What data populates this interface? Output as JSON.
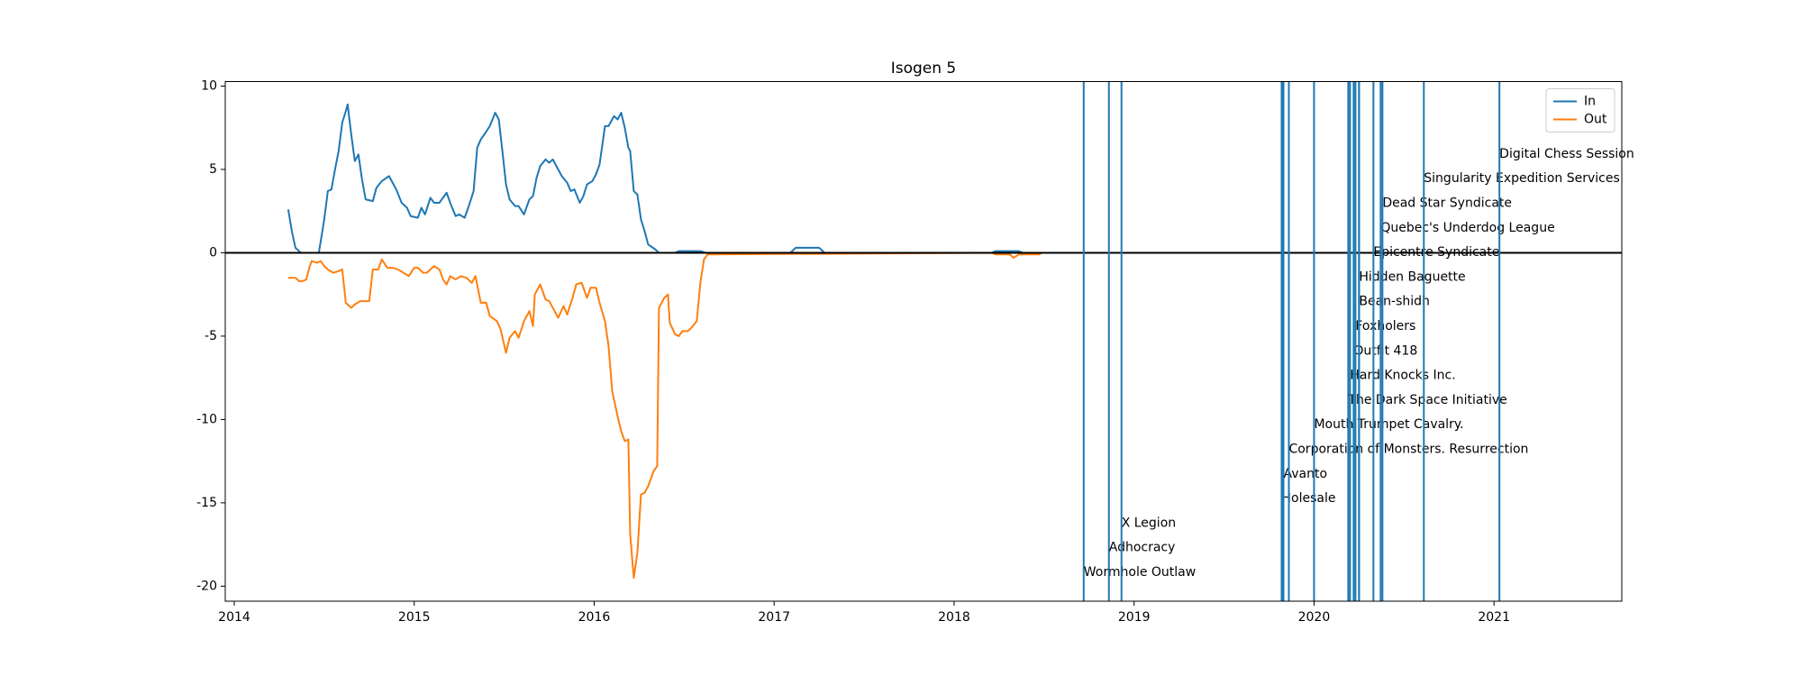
{
  "chart_data": {
    "type": "line",
    "title": "Isogen 5",
    "xlim": [
      2013.95,
      2021.71
    ],
    "ylim": [
      -20.9,
      10.27
    ],
    "xticks": [
      2014,
      2015,
      2016,
      2017,
      2018,
      2019,
      2020,
      2021
    ],
    "yticks": [
      10,
      5,
      0,
      -5,
      -10,
      -15,
      -20
    ],
    "legend": "upper right",
    "hline": 0,
    "hline_color": "#000000",
    "event_color": "#1f77b4",
    "series": [
      {
        "name": "In",
        "color": "#1f77b4",
        "x": [
          2014.3,
          2014.32,
          2014.34,
          2014.37,
          2014.47,
          2014.5,
          2014.52,
          2014.54,
          2014.56,
          2014.58,
          2014.6,
          2014.62,
          2014.63,
          2014.65,
          2014.67,
          2014.69,
          2014.71,
          2014.73,
          2014.77,
          2014.79,
          2014.82,
          2014.86,
          2014.88,
          2014.9,
          2014.93,
          2014.96,
          2014.98,
          2015.02,
          2015.04,
          2015.06,
          2015.09,
          2015.11,
          2015.14,
          2015.18,
          2015.2,
          2015.23,
          2015.25,
          2015.28,
          2015.3,
          2015.33,
          2015.35,
          2015.37,
          2015.39,
          2015.42,
          2015.45,
          2015.47,
          2015.49,
          2015.51,
          2015.53,
          2015.56,
          2015.58,
          2015.61,
          2015.64,
          2015.66,
          2015.68,
          2015.7,
          2015.73,
          2015.75,
          2015.77,
          2015.8,
          2015.82,
          2015.85,
          2015.87,
          2015.89,
          2015.92,
          2015.94,
          2015.96,
          2015.99,
          2016.01,
          2016.03,
          2016.06,
          2016.08,
          2016.11,
          2016.13,
          2016.15,
          2016.17,
          2016.19,
          2016.2,
          2016.22,
          2016.24,
          2016.26,
          2016.28,
          2016.3,
          2016.34,
          2016.36,
          2016.45,
          2016.47,
          2016.59,
          2016.62,
          2017.09,
          2017.12,
          2017.25,
          2017.28,
          2018.21,
          2018.23,
          2018.36,
          2018.38,
          2021.35
        ],
        "values": [
          2.6,
          1.3,
          0.3,
          0,
          0,
          2.0,
          3.7,
          3.8,
          5.0,
          6.1,
          7.8,
          8.5,
          8.9,
          7.1,
          5.5,
          5.9,
          4.4,
          3.2,
          3.1,
          3.9,
          4.3,
          4.6,
          4.2,
          3.8,
          3.0,
          2.7,
          2.2,
          2.1,
          2.7,
          2.3,
          3.3,
          3.0,
          3.0,
          3.6,
          3.0,
          2.2,
          2.3,
          2.1,
          2.7,
          3.7,
          6.3,
          6.8,
          7.1,
          7.6,
          8.4,
          8.0,
          6.1,
          4.1,
          3.2,
          2.8,
          2.8,
          2.3,
          3.2,
          3.4,
          4.5,
          5.2,
          5.6,
          5.4,
          5.6,
          5.0,
          4.6,
          4.2,
          3.7,
          3.8,
          3.0,
          3.4,
          4.1,
          4.3,
          4.7,
          5.3,
          7.6,
          7.6,
          8.2,
          8.0,
          8.4,
          7.5,
          6.3,
          6.1,
          3.7,
          3.5,
          2.0,
          1.3,
          0.5,
          0.2,
          0,
          0,
          0.1,
          0.1,
          0,
          0,
          0.3,
          0.3,
          0,
          0,
          0.1,
          0.1,
          0,
          0
        ]
      },
      {
        "name": "Out",
        "color": "#ff7f0e",
        "x": [
          2014.3,
          2014.32,
          2014.34,
          2014.36,
          2014.38,
          2014.4,
          2014.42,
          2014.43,
          2014.46,
          2014.48,
          2014.5,
          2014.52,
          2014.55,
          2014.58,
          2014.6,
          2014.62,
          2014.65,
          2014.67,
          2014.7,
          2014.75,
          2014.77,
          2014.8,
          2014.82,
          2014.85,
          2014.88,
          2014.91,
          2014.94,
          2014.97,
          2015.0,
          2015.02,
          2015.05,
          2015.07,
          2015.11,
          2015.14,
          2015.16,
          2015.18,
          2015.2,
          2015.23,
          2015.26,
          2015.29,
          2015.32,
          2015.34,
          2015.37,
          2015.4,
          2015.42,
          2015.46,
          2015.48,
          2015.51,
          2015.53,
          2015.56,
          2015.58,
          2015.61,
          2015.64,
          2015.66,
          2015.67,
          2015.7,
          2015.73,
          2015.75,
          2015.78,
          2015.8,
          2015.83,
          2015.85,
          2015.88,
          2015.9,
          2015.93,
          2015.96,
          2015.98,
          2016.01,
          2016.03,
          2016.06,
          2016.08,
          2016.1,
          2016.13,
          2016.15,
          2016.17,
          2016.19,
          2016.2,
          2016.22,
          2016.24,
          2016.26,
          2016.28,
          2016.3,
          2016.33,
          2016.35,
          2016.36,
          2016.39,
          2016.41,
          2016.42,
          2016.45,
          2016.47,
          2016.49,
          2016.52,
          2016.54,
          2016.57,
          2016.59,
          2016.61,
          2016.63,
          2018.21,
          2018.23,
          2018.31,
          2018.33,
          2018.36,
          2018.47,
          2018.49,
          2021.35
        ],
        "values": [
          -1.5,
          -1.5,
          -1.5,
          -1.7,
          -1.7,
          -1.6,
          -0.8,
          -0.5,
          -0.6,
          -0.5,
          -0.8,
          -1.0,
          -1.2,
          -1.1,
          -1.0,
          -3.0,
          -3.3,
          -3.1,
          -2.9,
          -2.9,
          -1.0,
          -1.0,
          -0.4,
          -0.9,
          -0.9,
          -1.0,
          -1.2,
          -1.4,
          -0.9,
          -0.9,
          -1.2,
          -1.2,
          -0.8,
          -1.0,
          -1.6,
          -1.9,
          -1.4,
          -1.6,
          -1.4,
          -1.5,
          -1.8,
          -1.4,
          -3.0,
          -3.0,
          -3.8,
          -4.1,
          -4.6,
          -6.0,
          -5.1,
          -4.7,
          -5.1,
          -4.1,
          -3.5,
          -4.4,
          -2.5,
          -1.9,
          -2.8,
          -2.9,
          -3.5,
          -3.9,
          -3.2,
          -3.7,
          -2.7,
          -1.9,
          -1.8,
          -2.7,
          -2.1,
          -2.1,
          -3.0,
          -4.1,
          -5.6,
          -8.3,
          -9.8,
          -10.7,
          -11.3,
          -11.2,
          -16.9,
          -19.5,
          -18,
          -14.5,
          -14.4,
          -14.0,
          -13.1,
          -12.8,
          -3.3,
          -2.7,
          -2.5,
          -4.2,
          -4.9,
          -5.0,
          -4.7,
          -4.7,
          -4.5,
          -4.1,
          -1.8,
          -0.4,
          -0.1,
          0,
          -0.1,
          -0.1,
          -0.3,
          -0.1,
          -0.1,
          0,
          0
        ]
      }
    ],
    "events": [
      {
        "x": 2018.72,
        "label": "Wormhole Outlaw"
      },
      {
        "x": 2018.86,
        "label": "Adhocracy"
      },
      {
        "x": 2018.93,
        "label": "X Legion"
      },
      {
        "x": 2019.82,
        "label": "Holesale"
      },
      {
        "x": 2019.83,
        "label": "Avanto"
      },
      {
        "x": 2019.86,
        "label": "Corporation of Monsters. Resurrection"
      },
      {
        "x": 2020.0,
        "label": "Mouth Trumpet Cavalry."
      },
      {
        "x": 2020.19,
        "label": "The Dark Space Initiative"
      },
      {
        "x": 2020.2,
        "label": "Hard Knocks Inc."
      },
      {
        "x": 2020.22,
        "label": "Outfit 418"
      },
      {
        "x": 2020.23,
        "label": "Foxholers"
      },
      {
        "x": 2020.25,
        "label": "Bean-shidh"
      },
      {
        "x": 2020.25,
        "label": "Hidden Baguette"
      },
      {
        "x": 2020.33,
        "label": "Epicentre Syndicate"
      },
      {
        "x": 2020.37,
        "label": "Quebec's Underdog League"
      },
      {
        "x": 2020.38,
        "label": "Dead Star Syndicate"
      },
      {
        "x": 2020.61,
        "label": "Singularity Expedition Services"
      },
      {
        "x": 2021.03,
        "label": "Digital Chess Session"
      }
    ]
  }
}
